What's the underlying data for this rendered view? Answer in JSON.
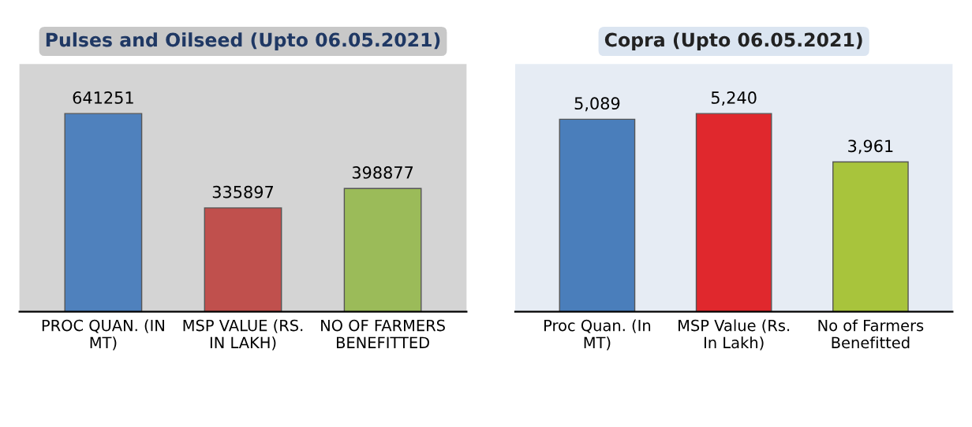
{
  "chart_data": [
    {
      "type": "bar",
      "title": "Pulses and Oilseed (Upto 06.05.2021)",
      "categories": [
        "PROC QUAN. (IN MT)",
        "MSP VALUE (RS. IN LAKH)",
        "NO OF FARMERS BENEFITTED"
      ],
      "values": [
        641251,
        335897,
        398877
      ],
      "colors": [
        "#4f81bd",
        "#c0504d",
        "#9bbb59"
      ],
      "data_labels": true
    },
    {
      "type": "bar",
      "title": "Copra (Upto 06.05.2021)",
      "categories": [
        "Proc Quan. (In MT)",
        "MSP Value (Rs. In Lakh)",
        "No of Farmers Benefitted"
      ],
      "values": [
        5089,
        5240,
        3961
      ],
      "colors": [
        "#4a7ebb",
        "#e0282d",
        "#a8c43c"
      ],
      "value_labels": [
        "5,089",
        "5,240",
        "3,961"
      ]
    }
  ]
}
